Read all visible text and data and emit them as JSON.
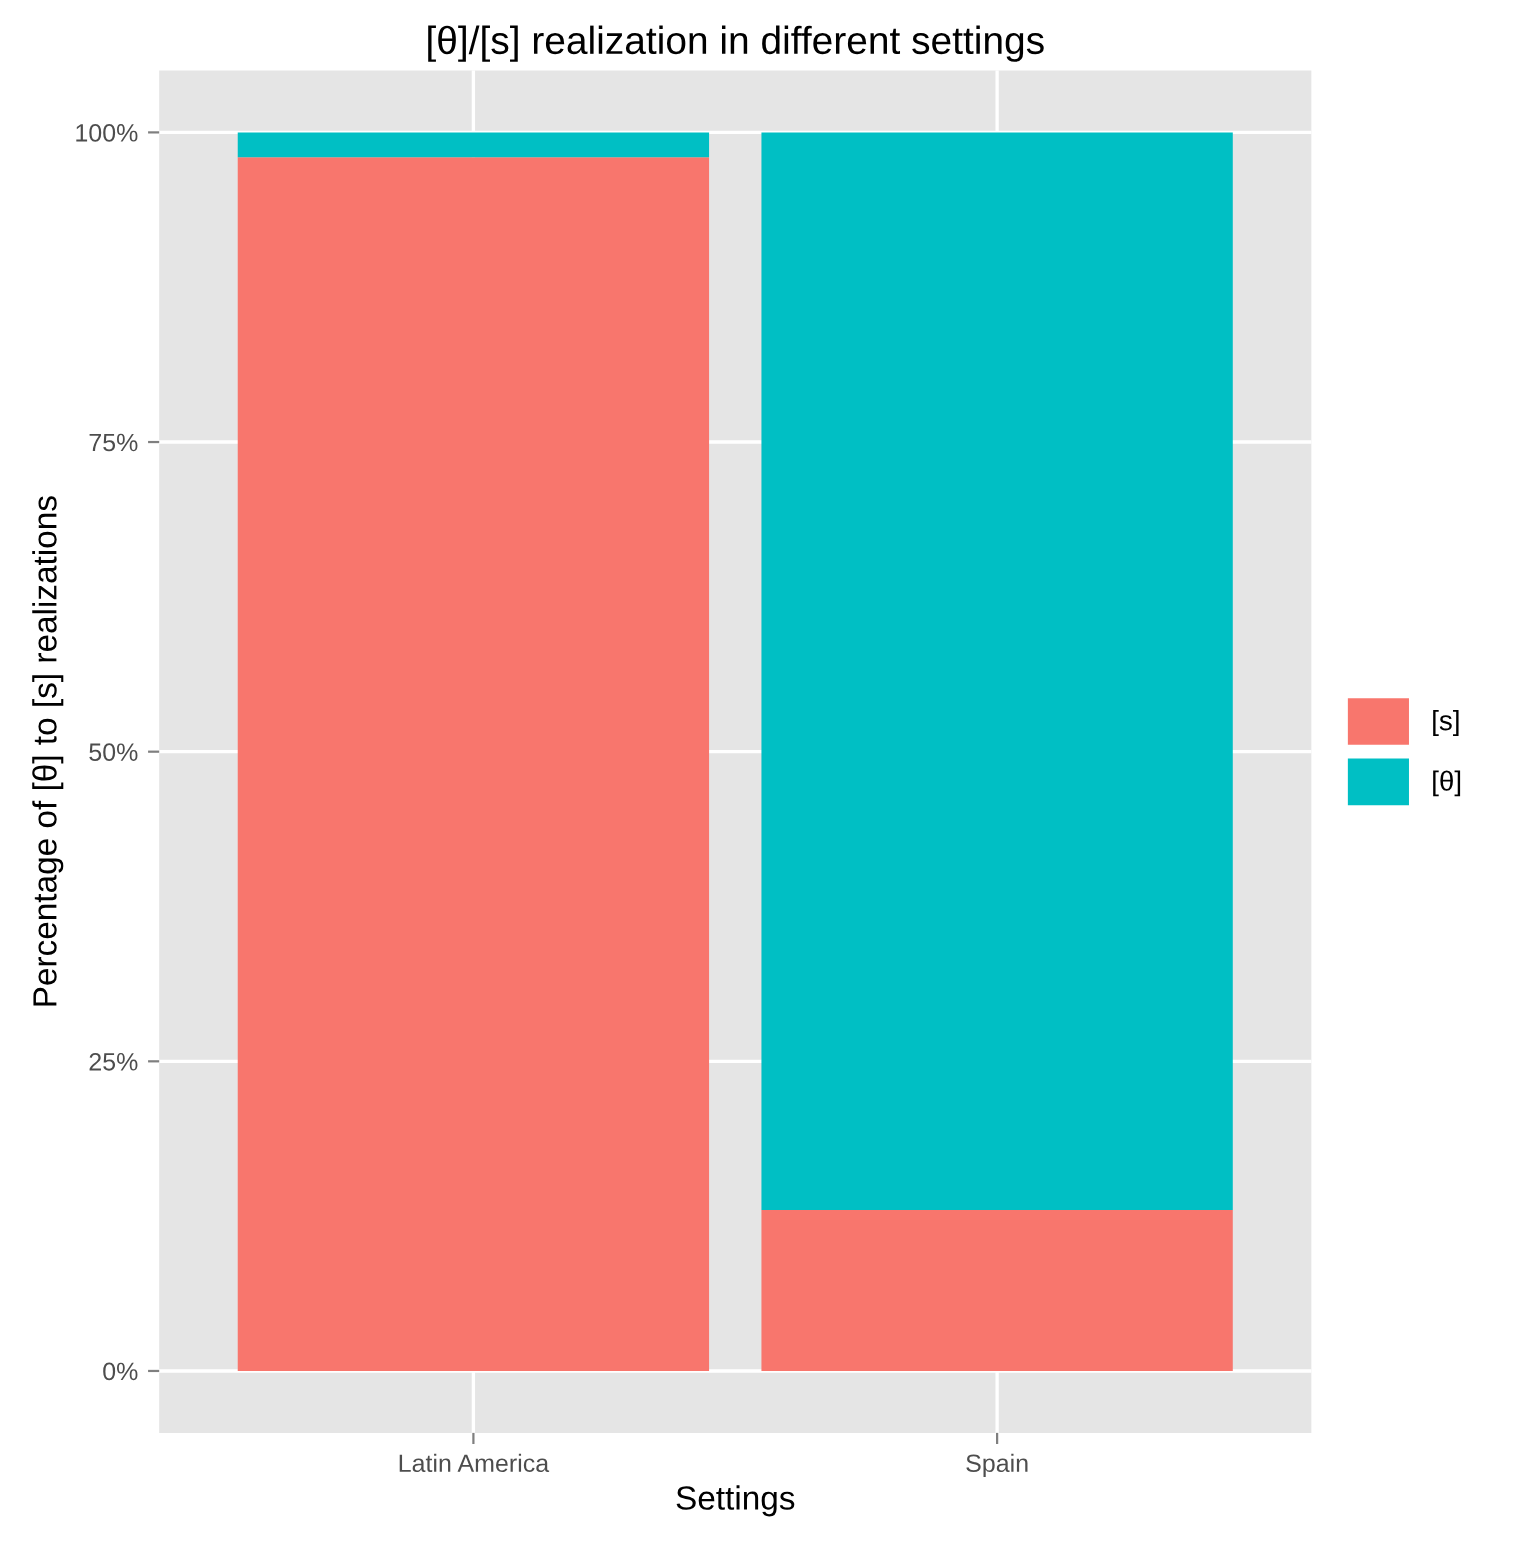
{
  "chart_data": {
    "type": "bar",
    "stacked": true,
    "title": "[θ]/[s] realization in different settings",
    "xlabel": "Settings",
    "ylabel": "Percentage of [θ] to [s] realizations",
    "categories": [
      "Latin America",
      "Spain"
    ],
    "series": [
      {
        "name": "[s]",
        "color": "#f8766d",
        "values": [
          98,
          13
        ]
      },
      {
        "name": "[θ]",
        "color": "#00bfc4",
        "values": [
          2,
          87
        ]
      }
    ],
    "ylim": [
      -5,
      105
    ],
    "yticks": [
      {
        "value": 0,
        "label": "0%"
      },
      {
        "value": 25,
        "label": "25%"
      },
      {
        "value": 50,
        "label": "50%"
      },
      {
        "value": 75,
        "label": "75%"
      },
      {
        "value": 100,
        "label": "100%"
      }
    ],
    "grid": true,
    "legend": "right"
  }
}
